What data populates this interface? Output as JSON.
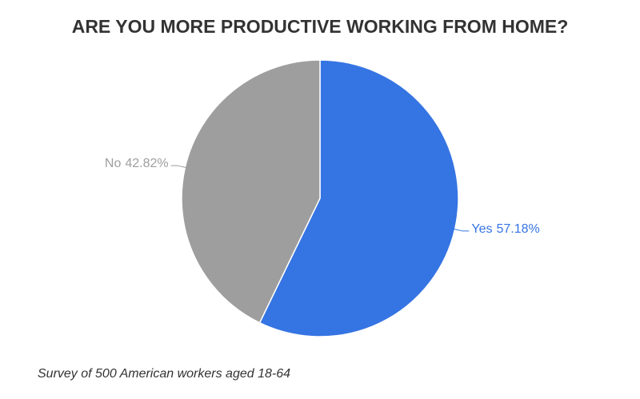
{
  "chart_data": {
    "type": "pie",
    "title": "ARE YOU MORE PRODUCTIVE WORKING FROM HOME?",
    "caption": "Survey of 500 American workers aged 18-64",
    "categories": [
      "Yes",
      "No"
    ],
    "values": [
      57.18,
      42.82
    ],
    "value_labels": [
      "57.18%",
      "42.82%"
    ],
    "colors": [
      "#3574e3",
      "#9e9e9e"
    ]
  }
}
